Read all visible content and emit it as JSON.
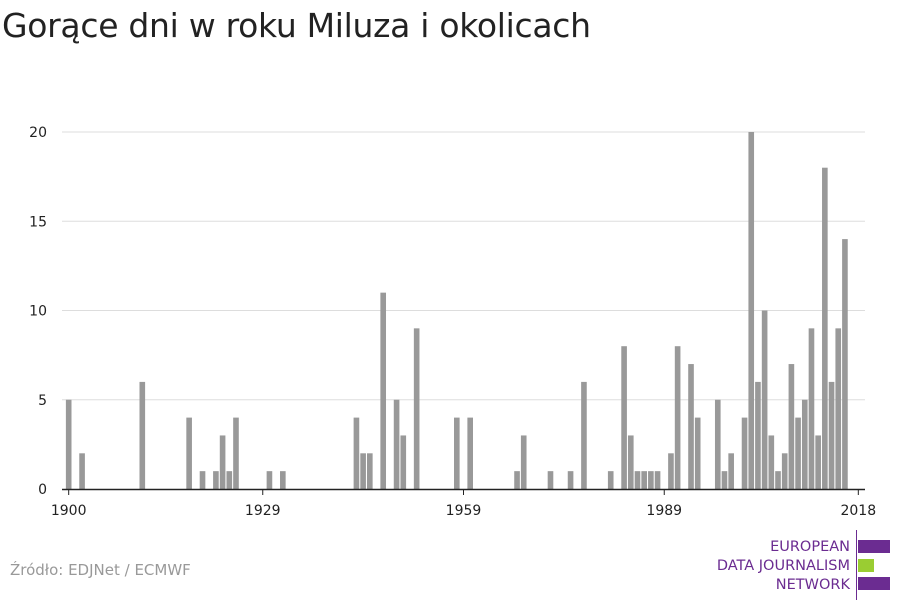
{
  "title": "Gorące dni w roku Miluza i okolicach",
  "source": "Źródło: EDJNet / ECMWF",
  "logo": {
    "lines": [
      "EUROPEAN",
      "DATA JOURNALISM",
      "NETWORK"
    ],
    "colors": {
      "primary": "#6b2c91",
      "accent": "#9acd32"
    }
  },
  "colors": {
    "bar": "#999999",
    "grid": "#dddddd",
    "axis": "#222222",
    "text": "#222222"
  },
  "chart_data": {
    "type": "bar",
    "title": "Gorące dni w roku Miluza i okolicach",
    "xlabel": "",
    "ylabel": "",
    "ylim": [
      0,
      20
    ],
    "xlim": [
      1899,
      2019
    ],
    "yticks": [
      0,
      5,
      10,
      15,
      20
    ],
    "xticks": [
      1900,
      1929,
      1959,
      1989,
      2018
    ],
    "grid": true,
    "x": [
      1900,
      1902,
      1911,
      1918,
      1920,
      1922,
      1923,
      1924,
      1925,
      1930,
      1932,
      1943,
      1944,
      1945,
      1947,
      1949,
      1950,
      1952,
      1958,
      1960,
      1967,
      1968,
      1972,
      1975,
      1977,
      1981,
      1983,
      1984,
      1985,
      1986,
      1987,
      1988,
      1990,
      1991,
      1993,
      1994,
      1997,
      1998,
      1999,
      2001,
      2002,
      2003,
      2004,
      2005,
      2006,
      2007,
      2008,
      2009,
      2010,
      2011,
      2012,
      2013,
      2014,
      2015,
      2016,
      2017
    ],
    "values": [
      5,
      2,
      6,
      4,
      1,
      1,
      3,
      1,
      4,
      1,
      1,
      4,
      2,
      2,
      11,
      5,
      3,
      9,
      4,
      4,
      1,
      3,
      1,
      1,
      6,
      1,
      8,
      3,
      1,
      1,
      1,
      1,
      2,
      8,
      7,
      4,
      5,
      1,
      2,
      4,
      20,
      6,
      10,
      3,
      1,
      2,
      7,
      4,
      5,
      9,
      3,
      18,
      6,
      9,
      14,
      0
    ]
  }
}
